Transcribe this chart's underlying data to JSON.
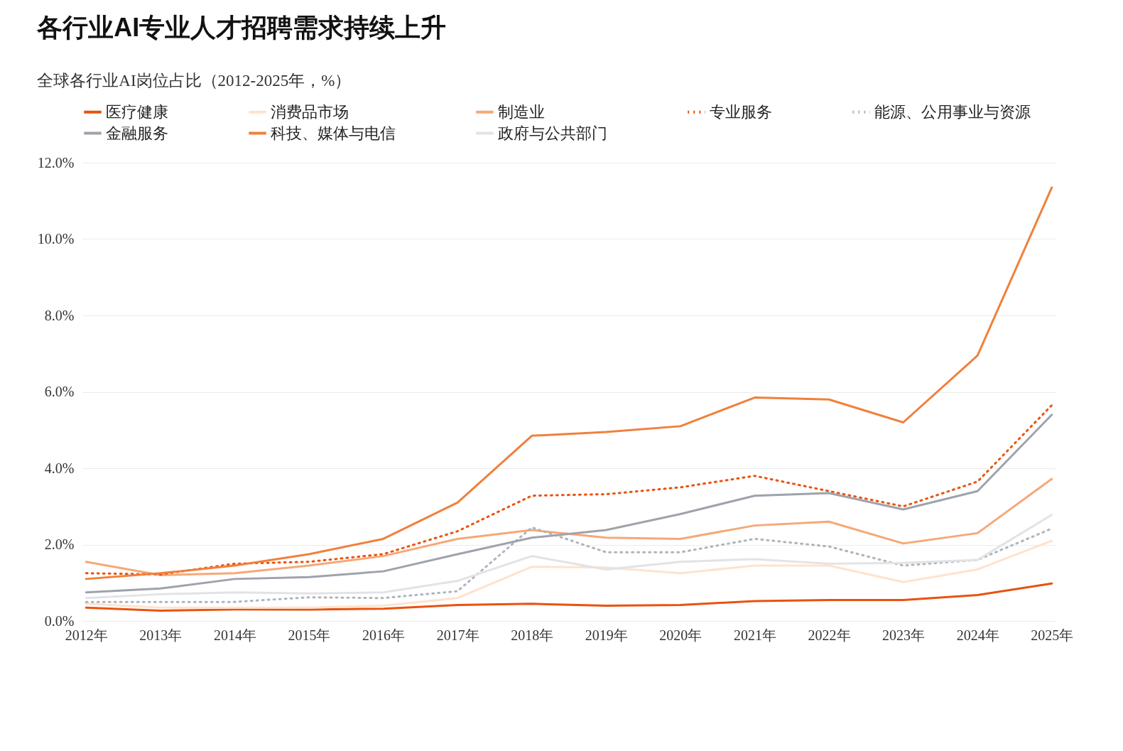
{
  "chart_data": {
    "type": "line",
    "title": "各行业AI专业人才招聘需求持续上升",
    "subtitle": "全球各行业AI岗位占比（2012-2025年，%）",
    "categories": [
      "2012年",
      "2013年",
      "2014年",
      "2015年",
      "2016年",
      "2017年",
      "2018年",
      "2019年",
      "2020年",
      "2021年",
      "2022年",
      "2023年",
      "2024年",
      "2025年"
    ],
    "ylim": [
      0,
      12
    ],
    "yticks": [
      {
        "value": 0,
        "label": "0.0%"
      },
      {
        "value": 2,
        "label": "2.0%"
      },
      {
        "value": 4,
        "label": "4.0%"
      },
      {
        "value": 6,
        "label": "6.0%"
      },
      {
        "value": 8,
        "label": "8.0%"
      },
      {
        "value": 10,
        "label": "10.0%"
      },
      {
        "value": 12,
        "label": "12.0%"
      }
    ],
    "grid": "y",
    "legend": "top left",
    "marker": "none",
    "series": [
      {
        "name": "医疗健康",
        "color": "#e8530f",
        "line_style": "solid",
        "values": [
          0.35,
          0.27,
          0.3,
          0.3,
          0.32,
          0.42,
          0.45,
          0.4,
          0.42,
          0.52,
          0.55,
          0.55,
          0.68,
          0.98
        ]
      },
      {
        "name": "消费品市场",
        "color": "#fde3cf",
        "line_style": "solid",
        "values": [
          0.45,
          0.35,
          0.35,
          0.35,
          0.4,
          0.6,
          1.42,
          1.4,
          1.25,
          1.45,
          1.45,
          1.02,
          1.35,
          2.1
        ]
      },
      {
        "name": "制造业",
        "color": "#f6a877",
        "line_style": "solid",
        "values": [
          1.55,
          1.2,
          1.25,
          1.45,
          1.7,
          2.15,
          2.38,
          2.18,
          2.15,
          2.5,
          2.6,
          2.03,
          2.3,
          3.72
        ]
      },
      {
        "name": "专业服务",
        "color": "#e8530f",
        "line_style": "dotted",
        "values": [
          1.25,
          1.22,
          1.5,
          1.55,
          1.75,
          2.35,
          3.28,
          3.32,
          3.5,
          3.8,
          3.4,
          3.0,
          3.65,
          5.65
        ]
      },
      {
        "name": "能源、公用事业与资源",
        "color": "#b0b4bb",
        "line_style": "dotted",
        "values": [
          0.5,
          0.5,
          0.5,
          0.62,
          0.6,
          0.78,
          2.45,
          1.8,
          1.8,
          2.15,
          1.95,
          1.45,
          1.6,
          2.42
        ]
      },
      {
        "name": "金融服务",
        "color": "#9ea3ab",
        "line_style": "solid",
        "values": [
          0.75,
          0.85,
          1.1,
          1.15,
          1.3,
          1.75,
          2.18,
          2.38,
          2.8,
          3.28,
          3.35,
          2.92,
          3.4,
          5.4
        ]
      },
      {
        "name": "科技、媒体与电信",
        "color": "#f0803c",
        "line_style": "solid",
        "values": [
          1.1,
          1.25,
          1.45,
          1.75,
          2.15,
          3.1,
          4.85,
          4.95,
          5.1,
          5.85,
          5.8,
          5.2,
          6.95,
          11.35
        ]
      },
      {
        "name": "政府与公共部门",
        "color": "#e2e3e6",
        "line_style": "solid",
        "values": [
          0.6,
          0.7,
          0.75,
          0.72,
          0.75,
          1.05,
          1.7,
          1.35,
          1.55,
          1.62,
          1.5,
          1.52,
          1.6,
          2.78
        ]
      }
    ]
  }
}
